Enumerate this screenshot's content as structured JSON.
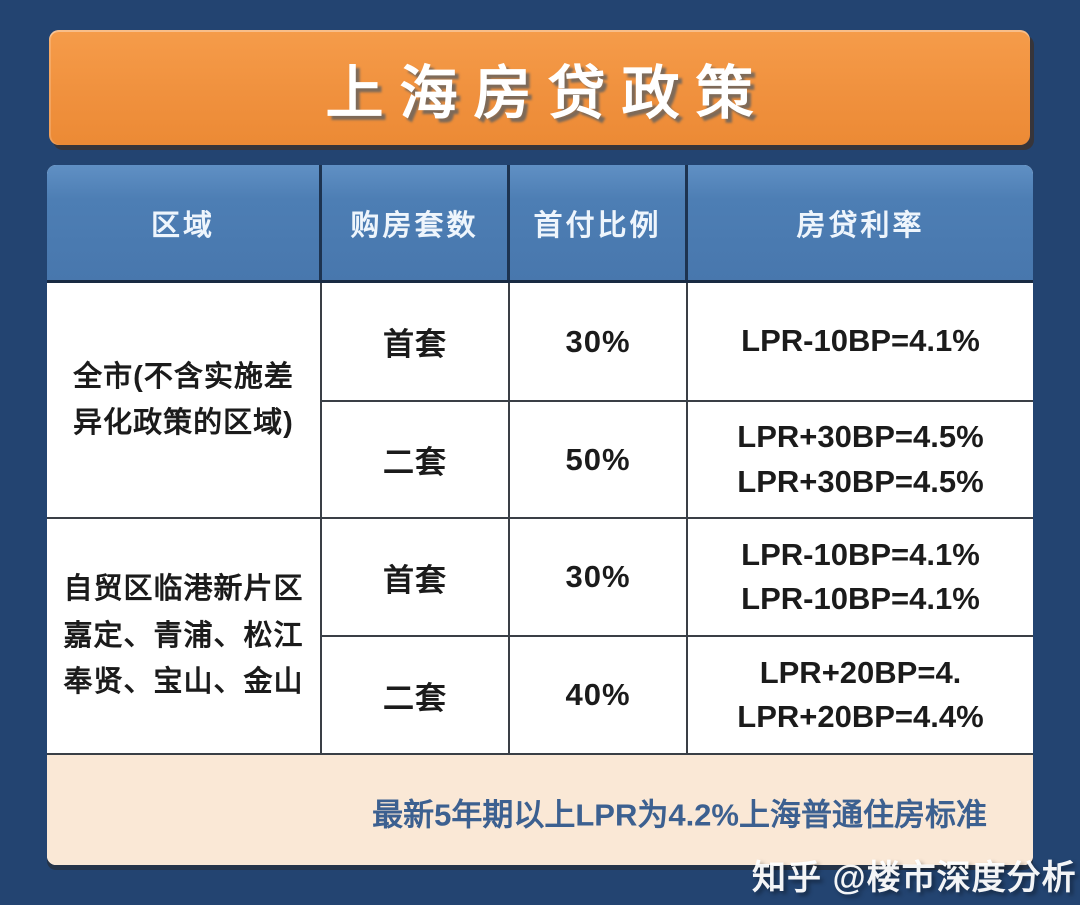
{
  "title": "上海房贷政策",
  "table": {
    "headers": [
      "区域",
      "购房套数",
      "首付比例",
      "房贷利率"
    ],
    "groups": [
      {
        "region": "全市(不含实施差\n异化政策的区域)",
        "rows": [
          {
            "units": "首套",
            "down_payment": "30%",
            "rate": "LPR-10BP=4.1%"
          },
          {
            "units": "二套",
            "down_payment": "50%",
            "rate": "LPR+30BP=4.5%\nLPR+30BP=4.5%"
          }
        ]
      },
      {
        "region": "自贸区临港新片区\n嘉定、青浦、松江\n奉贤、宝山、金山",
        "rows": [
          {
            "units": "首套",
            "down_payment": "30%",
            "rate": "LPR-10BP=4.1%\nLPR-10BP=4.1%"
          },
          {
            "units": "二套",
            "down_payment": "40%",
            "rate": "LPR+20BP=4.\nLPR+20BP=4.4%"
          }
        ]
      }
    ]
  },
  "footer": {
    "note": "最新5年期以上LPR为4.2%上海普通住房标准"
  },
  "watermark": "知乎 @楼市深度分析",
  "colors": {
    "background": "#234471",
    "banner": "#f0913e",
    "header": "#4d7eb4",
    "footer_bg": "#fae8d6",
    "footer_text": "#3c6090",
    "body_text": "#1b1b1b",
    "grid_line": "#3a3f46"
  },
  "chart_data": {
    "type": "table",
    "title": "上海房贷政策",
    "columns": [
      "区域",
      "购房套数",
      "首付比例",
      "房贷利率"
    ],
    "rows": [
      [
        "全市(不含实施差异化政策的区域)",
        "首套",
        "30%",
        "LPR-10BP=4.1%"
      ],
      [
        "全市(不含实施差异化政策的区域)",
        "二套",
        "50%",
        "LPR+30BP=4.5%；LPR+30BP=4.5%"
      ],
      [
        "自贸区临港新片区嘉定、青浦、松江奉贤、宝山、金山",
        "首套",
        "30%",
        "LPR-10BP=4.1%；LPR-10BP=4.1%"
      ],
      [
        "自贸区临港新片区嘉定、青浦、松江奉贤、宝山、金山",
        "二套",
        "40%",
        "LPR+20BP=4.；LPR+20BP=4.4%"
      ]
    ],
    "note": "最新5年期以上LPR为4.2%上海普通住房标准",
    "down_payment_values": [
      0.3,
      0.5,
      0.3,
      0.4
    ],
    "rate_values_pct": [
      4.1,
      4.5,
      4.1,
      4.4
    ],
    "lpr_5y_pct": 4.2
  }
}
